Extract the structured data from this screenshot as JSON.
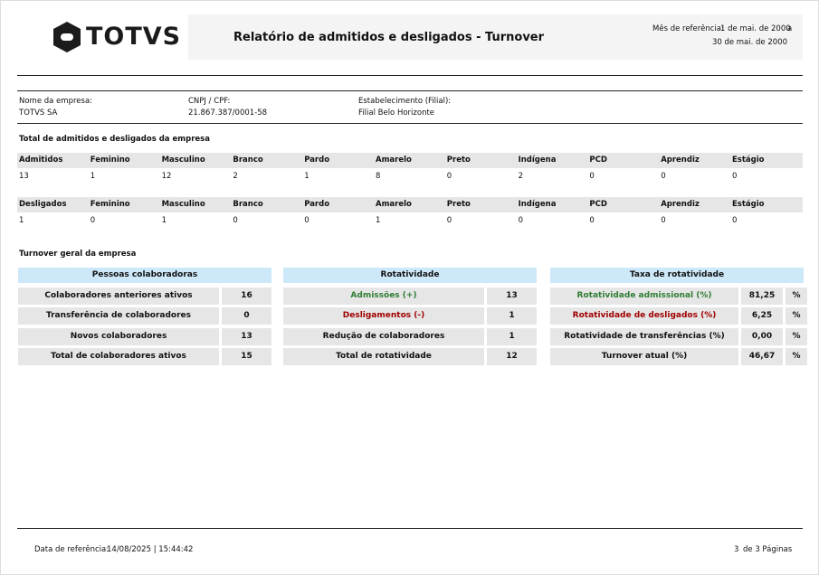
{
  "header": {
    "logo": "TOTVS",
    "title": "Relatório de admitidos e desligados - Turnover",
    "ref_label": "Mês de referência:",
    "ref_from": "1 de mai. de 2000",
    "ref_sep": "a",
    "ref_to": "30 de mai. de 2000"
  },
  "company": {
    "fields": [
      {
        "label": "Nome da empresa:",
        "value": "TOTVS SA"
      },
      {
        "label": "CNPJ / CPF:",
        "value": "21.867.387/0001-58"
      },
      {
        "label": "Estabelecimento (Filial):",
        "value": "Filial Belo Horizonte"
      }
    ]
  },
  "totals": {
    "title": "Total de admitidos e desligados da empresa",
    "tables": [
      {
        "headers": [
          "Admitidos",
          "Feminino",
          "Masculino",
          "Branco",
          "Pardo",
          "Amarelo",
          "Preto",
          "Indígena",
          "PCD",
          "Aprendiz",
          "Estágio"
        ],
        "values": [
          "13",
          "1",
          "12",
          "2",
          "1",
          "8",
          "0",
          "2",
          "0",
          "0",
          "0"
        ]
      },
      {
        "headers": [
          "Desligados",
          "Feminino",
          "Masculino",
          "Branco",
          "Pardo",
          "Amarelo",
          "Preto",
          "Indígena",
          "PCD",
          "Aprendiz",
          "Estágio"
        ],
        "values": [
          "1",
          "0",
          "1",
          "0",
          "0",
          "1",
          "0",
          "0",
          "0",
          "0",
          "0"
        ]
      }
    ]
  },
  "turnover": {
    "title": "Turnover geral da empresa",
    "panels": [
      {
        "title": "Pessoas colaboradoras",
        "rows": [
          {
            "label": "Colaboradores anteriores ativos",
            "value": "16"
          },
          {
            "label": "Transferência de colaboradores",
            "value": "0"
          },
          {
            "label": "Novos colaboradores",
            "value": "13"
          },
          {
            "label": "Total de colaboradores ativos",
            "value": "15"
          }
        ]
      },
      {
        "title": "Rotatividade",
        "rows": [
          {
            "label": "Admissões (+)",
            "value": "13"
          },
          {
            "label": "Desligamentos (-)",
            "value": "1"
          },
          {
            "label": "Redução de colaboradores",
            "value": "1"
          },
          {
            "label": "Total de rotatividade",
            "value": "12"
          }
        ]
      },
      {
        "title": "Taxa de rotatividade",
        "rows": [
          {
            "label": "Rotatividade admissional (%)",
            "value": "81,25",
            "unit": "%"
          },
          {
            "label": "Rotatividade de desligados (%)",
            "value": "6,25",
            "unit": "%"
          },
          {
            "label": "Rotatividade de transferências (%)",
            "value": "0,00",
            "unit": "%"
          },
          {
            "label": "Turnover atual (%)",
            "value": "46,67",
            "unit": "%"
          }
        ]
      }
    ]
  },
  "footer": {
    "date_label": "Data de referência:",
    "date_value": "14/08/2025 | 15:44:42",
    "page": "3",
    "page_text": "de 3 Páginas"
  }
}
